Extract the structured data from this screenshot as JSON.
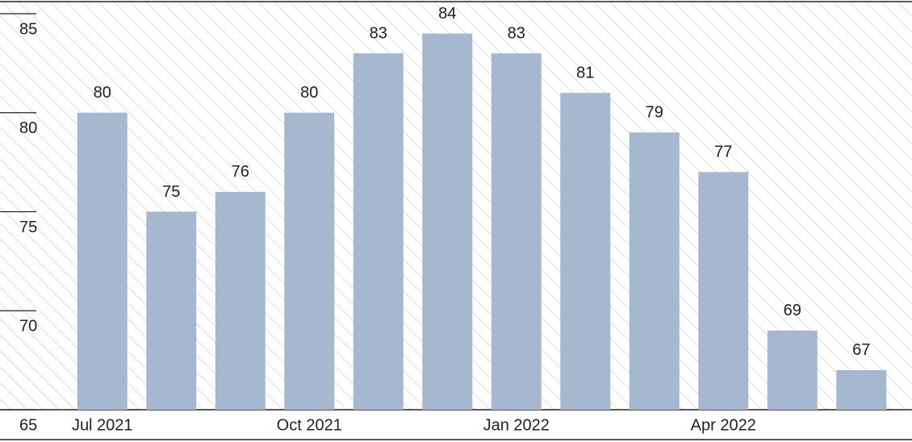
{
  "chart_data": {
    "type": "bar",
    "categories": [
      "Jul 2021",
      null,
      null,
      "Oct 2021",
      null,
      null,
      "Jan 2022",
      null,
      null,
      "Apr 2022",
      null,
      null
    ],
    "values": [
      80,
      75,
      76,
      80,
      83,
      84,
      83,
      81,
      79,
      77,
      69,
      67
    ],
    "color": "#a6b7d0",
    "ylim": [
      65,
      85
    ],
    "yticks": [
      65,
      70,
      75,
      80,
      85
    ],
    "grid": true
  }
}
